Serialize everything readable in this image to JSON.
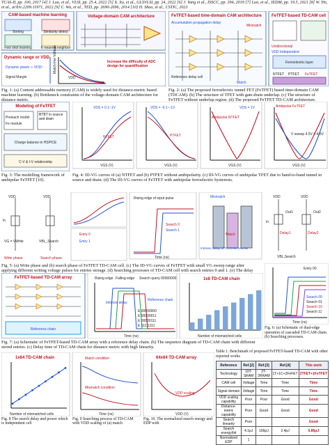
{
  "references": "TCAS-II, pp. 100, 2017 [4] J. Luo, et al., VLSI, pp. 25.4, 2022 [5] X. Xu, et al., GLSVLSI, pp. 24, 2022 [6] J. Yang et al., ISSCC, pp. 394, 2019 [7] Luo, et al., IEDM, pp. 19.5, 2021 [8] W. Yin, et al., arXiv:2209.11971, 2022 [9] C. Wu, et al., TED, pp. 2690-2696, 2014 [10] H. Shao, et al., CSTIC, 2023",
  "fig1": {
    "panel_a_title": "CAM-based machine learning",
    "panel_a_items": [
      "Sorting",
      "Few shot learning",
      "Similarity detect",
      "K-nearest neighbor"
    ],
    "panel_b_title": "Voltage-domain CAM architecture",
    "panel_c_title": "Dynamic range or VDD",
    "panel_c_text": [
      "Dynamic power ∝ VDD²",
      "Signal Margin",
      "Increase the difficulty of ADC design for quantification"
    ],
    "panel_c_axis": [
      "VDD",
      "Match-line Voltage"
    ],
    "caption": "Fig. 1: (a) Content addressable memory (CAM) is widely used for distance-metric based machine learning. (b) Bottleneck constraints of the voltage-domain CAM architecture for distance metric."
  },
  "fig2": {
    "panel_a_title": "FeTFET-based time-domain CAM architecture",
    "panel_a_labels": [
      "Accumulation propagation delay",
      "Reference delay cell",
      "Match",
      "Mismatch"
    ],
    "panel_b_title": "FeTFET-based TD-CAM cell",
    "panel_b_labels": [
      "Unidirectional",
      "VDD Independent",
      "Ferroelectric layer",
      "NTFET",
      "PTFET",
      "FeTFET"
    ],
    "caption": "Fig. 2: (a) The proposed ferroelectric tunnel FET (FeTFET) based time-domain CAM (TDCAM). (b) The structure of TFET with gate-drain underlap. (c) The structure of FeTFET without underlap region. (d) The proposed FeTFET TD-CAM architecture."
  },
  "fig3": {
    "title": "Modeling of FeTFET",
    "items": [
      "Preisach model",
      "Fe module",
      "BTBT in source and drain",
      "Charge balance in HSPICE",
      "C-V & I-V relationship"
    ],
    "caption": "Fig. 3: The modelling framework of ambipolar FeTFET [10]."
  },
  "fig4": {
    "panel_a": {
      "title": "NTFET",
      "vds": "VDS = 0.1~1V",
      "xlabel": "VGS (V)",
      "ylabel": "IDS (A/μm)"
    },
    "panel_b": {
      "title": "PTFET",
      "vds": "VDS = -0.1~-1V",
      "xlabel": "VGS (V)",
      "ylabel": "IDS (A/μm)"
    },
    "panel_c": {
      "title": "Ambipolar NTFET",
      "vds": "VDS = 1V",
      "xlabel": "VGS (V)",
      "ylabel": "IDS (A/μm)"
    },
    "panel_d": {
      "title": "Ambipolar FeTFET",
      "sweep": "V sweep 4.5V / -4.5V",
      "xlabel": "VGS (V)",
      "ylabel": "IDS (A/μm)"
    },
    "caption": "Fig. 4: ID-VG curves of (a) NTFET and (b) PTFET without ambipolarity. (c) ID-VG curves of ambipolar TFET due to band-to-band tunnel in source and drain. (d) The ID-VG curves of FeTFET with ambipolar ferroelectric hysteresis."
  },
  "fig5": {
    "labels": [
      "VDD",
      "In",
      "Write phase",
      "VG = VWrite",
      "VBL_Search",
      "Search phase",
      "Rising edge of input pulse",
      "Search 0",
      "Search 1",
      "Entry 0",
      "Entry 1",
      "Mismatch",
      "Match",
      "Intrinsic delay of TD-CAM inverter",
      "Delay"
    ],
    "axis": [
      "Time (ns)",
      "IDS (A/μm)",
      "Delay of TD-CAM (ns)",
      "Entry",
      "Query"
    ],
    "caption": "Fig. 5: (a) Write phase and (b) search phase of FeTFET TD-CAM cell. (c) The ID-VG curves of FeTFET with small VG sweep range after applying different writing voltage pulses for entries storage. (d) Searching processes of TD-CAM cell with search entries 0 and 1. (e) The delay times indicate XNOR-logic local comparison of TD-CAM."
  },
  "fig6": {
    "labels": [
      "VDD",
      "In",
      "Out1",
      "Out2",
      "Delay1",
      "Delay2",
      "VBL,Search",
      "Entry 00"
    ],
    "legend": [
      "Search 00",
      "Search 01",
      "Search 10",
      "Search 11"
    ],
    "axis": [
      "Time (ns)",
      "VOUT (V)"
    ],
    "caption": "Fig. 6: (a) Schematic of dual-edge operation of cascaded TD-CAM chain. (b) Searching processes."
  },
  "fig7": {
    "panel_a_title": "FeTFET-based TD-CAM array",
    "panel_a_labels": [
      "Reference chain"
    ],
    "panel_b_labels": [
      "Rising edge",
      "Falling edge",
      "Search query 00000000",
      "Intrinsic delay",
      "Reference chain"
    ],
    "legend": [
      "E 00000000",
      "E 00000011",
      "E 00000111",
      "E 11111111"
    ],
    "panel_c_title": "1x8 TD-CAM chain",
    "axis": [
      "Time (ns)",
      "VOUT (V)",
      "Number of mismatched cells",
      "Delay of TD-CAM chain (ns)"
    ],
    "caption": "Fig. 7: (a) Schematic of FeTFET-based TD-CAM array with a reference delay chain. (b) The sequence diagram of TD-CAM chain with different stored entries. (c) Delay time of TD-CAM chain for distance metric with high linearity."
  },
  "table1": {
    "caption": "Table 1. Benchmark of proposed FeTFET-based TD-CAM with other reported works",
    "headers": [
      "Reference",
      "Ref.[2]",
      "Ref.[3]",
      "Ref.[4]",
      "This work"
    ],
    "rows": [
      [
        "Technology",
        "10T-SRAM",
        "2T-2RRAM",
        "1T+1C+2FeFET",
        "2TFET+1FeTFET"
      ],
      [
        "CAM cell",
        "Voltage",
        "Time",
        "Time",
        "Time"
      ],
      [
        "Signal domain",
        "Voltage",
        "Time",
        "Time",
        "Time"
      ],
      [
        "VDD scaling capability",
        "Poor",
        "Poor",
        "Good",
        "Good"
      ],
      [
        "Distance-metric capability",
        "Poor",
        "Good",
        "Good",
        "Good"
      ],
      [
        "Search linearity",
        "Poor",
        "",
        "",
        "Good"
      ],
      [
        "Search energy/bit",
        "4.1pJ",
        "166pJ",
        "2.4pJ",
        "0.85pJ"
      ],
      [
        "Normalized EDP",
        "1",
        "",
        "",
        ""
      ]
    ]
  },
  "fig8": {
    "title": "1x64 TD-CAM chain",
    "axis": [
      "Number of mismatched cells",
      "Search power (nW)"
    ],
    "caption": "Fig. 8 The search delay and power which is independent cell"
  },
  "fig9": {
    "labels": [
      "Match condition",
      "Mismatch condition"
    ],
    "axis": [
      "Time (ns)",
      "Search delay (ns)"
    ],
    "caption": "Fig. 9 Searching process of TD-CAM with VDD scaling of (a) match"
  },
  "fig10": {
    "title": "64x64 TD-CAM array",
    "labels": [
      "VDD scaling"
    ],
    "axis": [
      "VDD (V)"
    ],
    "caption": "Fig. 10. The normalized search energy and EDP with"
  },
  "chart_data": [
    {
      "type": "line",
      "title": "1x8 TD-CAM chain",
      "xlabel": "Number of mismatched cells",
      "ylabel": "Delay of TD-CAM chain (ns)",
      "x": [
        0,
        1,
        2,
        3,
        4,
        5,
        6,
        7,
        8
      ],
      "series": [
        {
          "values": [
            1.0,
            1.5,
            2.0,
            2.6,
            3.1,
            3.6,
            4.2,
            4.7,
            5.2
          ]
        }
      ],
      "xlim": [
        0,
        8
      ],
      "ylim": [
        0,
        6
      ]
    },
    {
      "type": "line",
      "title": "1x64 TD-CAM chain",
      "xlabel": "Number of mismatched cells",
      "ylabel": "Search power (nW)",
      "x": [
        0,
        8,
        16,
        24,
        32,
        40,
        48,
        56,
        64
      ],
      "series": [
        {
          "values": [
            1,
            2,
            3,
            4,
            5,
            6,
            7,
            8,
            9
          ]
        }
      ],
      "xlim": [
        0,
        64
      ],
      "ylim": [
        0,
        10
      ]
    }
  ]
}
